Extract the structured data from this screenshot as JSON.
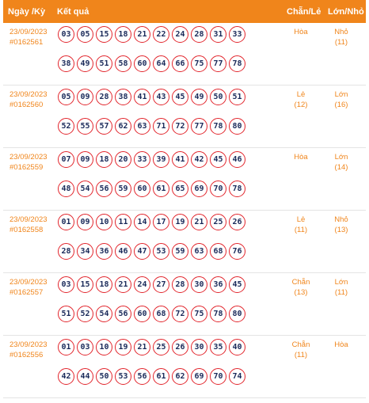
{
  "header": {
    "date_label": "Ngày /Kỳ",
    "result_label": "Kết quả",
    "chanle_label": "Chẵn/Lẻ",
    "lonnho_label": "Lớn/Nhỏ"
  },
  "rows": [
    {
      "date": "23/09/2023",
      "draw": "#0162561",
      "numbers": [
        "03",
        "05",
        "15",
        "18",
        "21",
        "22",
        "24",
        "28",
        "31",
        "33",
        "38",
        "49",
        "51",
        "58",
        "60",
        "64",
        "66",
        "75",
        "77",
        "78"
      ],
      "chanle": {
        "label": "Hòa",
        "count": ""
      },
      "lonnho": {
        "label": "Nhỏ",
        "count": "(11)"
      }
    },
    {
      "date": "23/09/2023",
      "draw": "#0162560",
      "numbers": [
        "05",
        "09",
        "28",
        "38",
        "41",
        "43",
        "45",
        "49",
        "50",
        "51",
        "52",
        "55",
        "57",
        "62",
        "63",
        "71",
        "72",
        "77",
        "78",
        "80"
      ],
      "chanle": {
        "label": "Lẻ",
        "count": "(12)"
      },
      "lonnho": {
        "label": "Lớn",
        "count": "(16)"
      }
    },
    {
      "date": "23/09/2023",
      "draw": "#0162559",
      "numbers": [
        "07",
        "09",
        "18",
        "20",
        "33",
        "39",
        "41",
        "42",
        "45",
        "46",
        "48",
        "54",
        "56",
        "59",
        "60",
        "61",
        "65",
        "69",
        "70",
        "78"
      ],
      "chanle": {
        "label": "Hòa",
        "count": ""
      },
      "lonnho": {
        "label": "Lớn",
        "count": "(14)"
      }
    },
    {
      "date": "23/09/2023",
      "draw": "#0162558",
      "numbers": [
        "01",
        "09",
        "10",
        "11",
        "14",
        "17",
        "19",
        "21",
        "25",
        "26",
        "28",
        "34",
        "36",
        "46",
        "47",
        "53",
        "59",
        "63",
        "68",
        "76"
      ],
      "chanle": {
        "label": "Lẻ",
        "count": "(11)"
      },
      "lonnho": {
        "label": "Nhỏ",
        "count": "(13)"
      }
    },
    {
      "date": "23/09/2023",
      "draw": "#0162557",
      "numbers": [
        "03",
        "15",
        "18",
        "21",
        "24",
        "27",
        "28",
        "30",
        "36",
        "45",
        "51",
        "52",
        "54",
        "56",
        "60",
        "68",
        "72",
        "75",
        "78",
        "80"
      ],
      "chanle": {
        "label": "Chẵn",
        "count": "(13)"
      },
      "lonnho": {
        "label": "Lớn",
        "count": "(11)"
      }
    },
    {
      "date": "23/09/2023",
      "draw": "#0162556",
      "numbers": [
        "01",
        "03",
        "10",
        "19",
        "21",
        "25",
        "26",
        "30",
        "35",
        "40",
        "42",
        "44",
        "50",
        "53",
        "56",
        "61",
        "62",
        "69",
        "70",
        "74"
      ],
      "chanle": {
        "label": "Chẵn",
        "count": "(11)"
      },
      "lonnho": {
        "label": "Hòa",
        "count": ""
      }
    }
  ]
}
